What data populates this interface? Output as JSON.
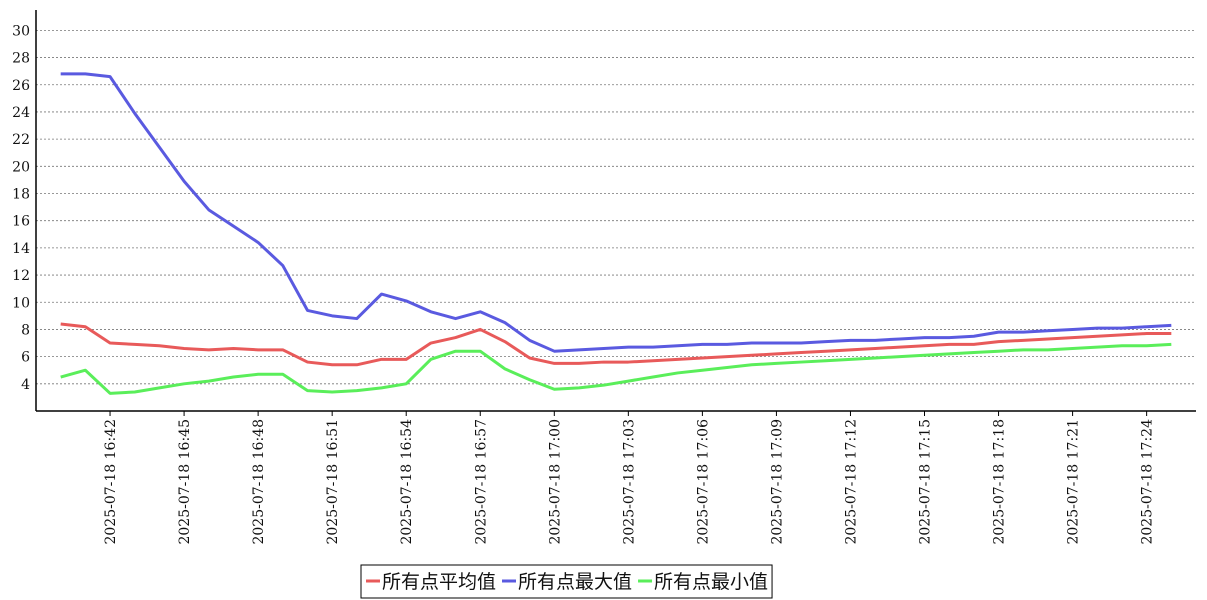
{
  "chart_data": {
    "type": "line",
    "x": [
      "2025-07-18 16:40",
      "2025-07-18 16:41",
      "2025-07-18 16:42",
      "2025-07-18 16:43",
      "2025-07-18 16:44",
      "2025-07-18 16:45",
      "2025-07-18 16:46",
      "2025-07-18 16:47",
      "2025-07-18 16:48",
      "2025-07-18 16:49",
      "2025-07-18 16:50",
      "2025-07-18 16:51",
      "2025-07-18 16:52",
      "2025-07-18 16:53",
      "2025-07-18 16:54",
      "2025-07-18 16:55",
      "2025-07-18 16:56",
      "2025-07-18 16:57",
      "2025-07-18 16:58",
      "2025-07-18 16:59",
      "2025-07-18 17:00",
      "2025-07-18 17:01",
      "2025-07-18 17:02",
      "2025-07-18 17:03",
      "2025-07-18 17:04",
      "2025-07-18 17:05",
      "2025-07-18 17:06",
      "2025-07-18 17:07",
      "2025-07-18 17:08",
      "2025-07-18 17:09",
      "2025-07-18 17:10",
      "2025-07-18 17:11",
      "2025-07-18 17:12",
      "2025-07-18 17:13",
      "2025-07-18 17:14",
      "2025-07-18 17:15",
      "2025-07-18 17:16",
      "2025-07-18 17:17",
      "2025-07-18 17:18",
      "2025-07-18 17:19",
      "2025-07-18 17:20",
      "2025-07-18 17:21",
      "2025-07-18 17:22",
      "2025-07-18 17:23",
      "2025-07-18 17:24",
      "2025-07-18 17:25"
    ],
    "series": [
      {
        "name": "所有点平均值",
        "color": "#e85a5a",
        "values": [
          8.4,
          8.2,
          7.0,
          6.9,
          6.8,
          6.6,
          6.5,
          6.6,
          6.5,
          6.5,
          5.6,
          5.4,
          5.4,
          5.8,
          5.8,
          7.0,
          7.4,
          8.0,
          7.1,
          5.9,
          5.5,
          5.5,
          5.6,
          5.6,
          5.7,
          5.8,
          5.9,
          6.0,
          6.1,
          6.2,
          6.3,
          6.4,
          6.5,
          6.6,
          6.7,
          6.8,
          6.9,
          6.9,
          7.1,
          7.2,
          7.3,
          7.4,
          7.5,
          7.6,
          7.7,
          7.7
        ]
      },
      {
        "name": "所有点最大值",
        "color": "#5a5ae0",
        "values": [
          26.8,
          26.8,
          26.6,
          23.9,
          21.4,
          18.9,
          16.8,
          15.6,
          14.4,
          12.7,
          9.4,
          9.0,
          8.8,
          10.6,
          10.1,
          9.3,
          8.8,
          9.3,
          8.5,
          7.2,
          6.4,
          6.5,
          6.6,
          6.7,
          6.7,
          6.8,
          6.9,
          6.9,
          7.0,
          7.0,
          7.0,
          7.1,
          7.2,
          7.2,
          7.3,
          7.4,
          7.4,
          7.5,
          7.8,
          7.8,
          7.9,
          8.0,
          8.1,
          8.1,
          8.2,
          8.3
        ]
      },
      {
        "name": "所有点最小值",
        "color": "#5aee5a",
        "values": [
          4.5,
          5.0,
          3.3,
          3.4,
          3.7,
          4.0,
          4.2,
          4.5,
          4.7,
          4.7,
          3.5,
          3.4,
          3.5,
          3.7,
          4.0,
          5.8,
          6.4,
          6.4,
          5.1,
          4.3,
          3.6,
          3.7,
          3.9,
          4.2,
          4.5,
          4.8,
          5.0,
          5.2,
          5.4,
          5.5,
          5.6,
          5.7,
          5.8,
          5.9,
          6.0,
          6.1,
          6.2,
          6.3,
          6.4,
          6.5,
          6.5,
          6.6,
          6.7,
          6.8,
          6.8,
          6.9
        ]
      }
    ],
    "xlim": [
      "2025-07-18 16:39",
      "2025-07-18 17:26"
    ],
    "xticks": [
      "2025-07-18 16:42",
      "2025-07-18 16:45",
      "2025-07-18 16:48",
      "2025-07-18 16:51",
      "2025-07-18 16:54",
      "2025-07-18 16:57",
      "2025-07-18 17:00",
      "2025-07-18 17:03",
      "2025-07-18 17:06",
      "2025-07-18 17:09",
      "2025-07-18 17:12",
      "2025-07-18 17:15",
      "2025-07-18 17:18",
      "2025-07-18 17:21",
      "2025-07-18 17:24"
    ],
    "ylim": [
      2,
      31.5
    ],
    "yticks": [
      4,
      6,
      8,
      10,
      12,
      14,
      16,
      18,
      20,
      22,
      24,
      26,
      28,
      30
    ],
    "grid": true,
    "legend": "bottom"
  }
}
